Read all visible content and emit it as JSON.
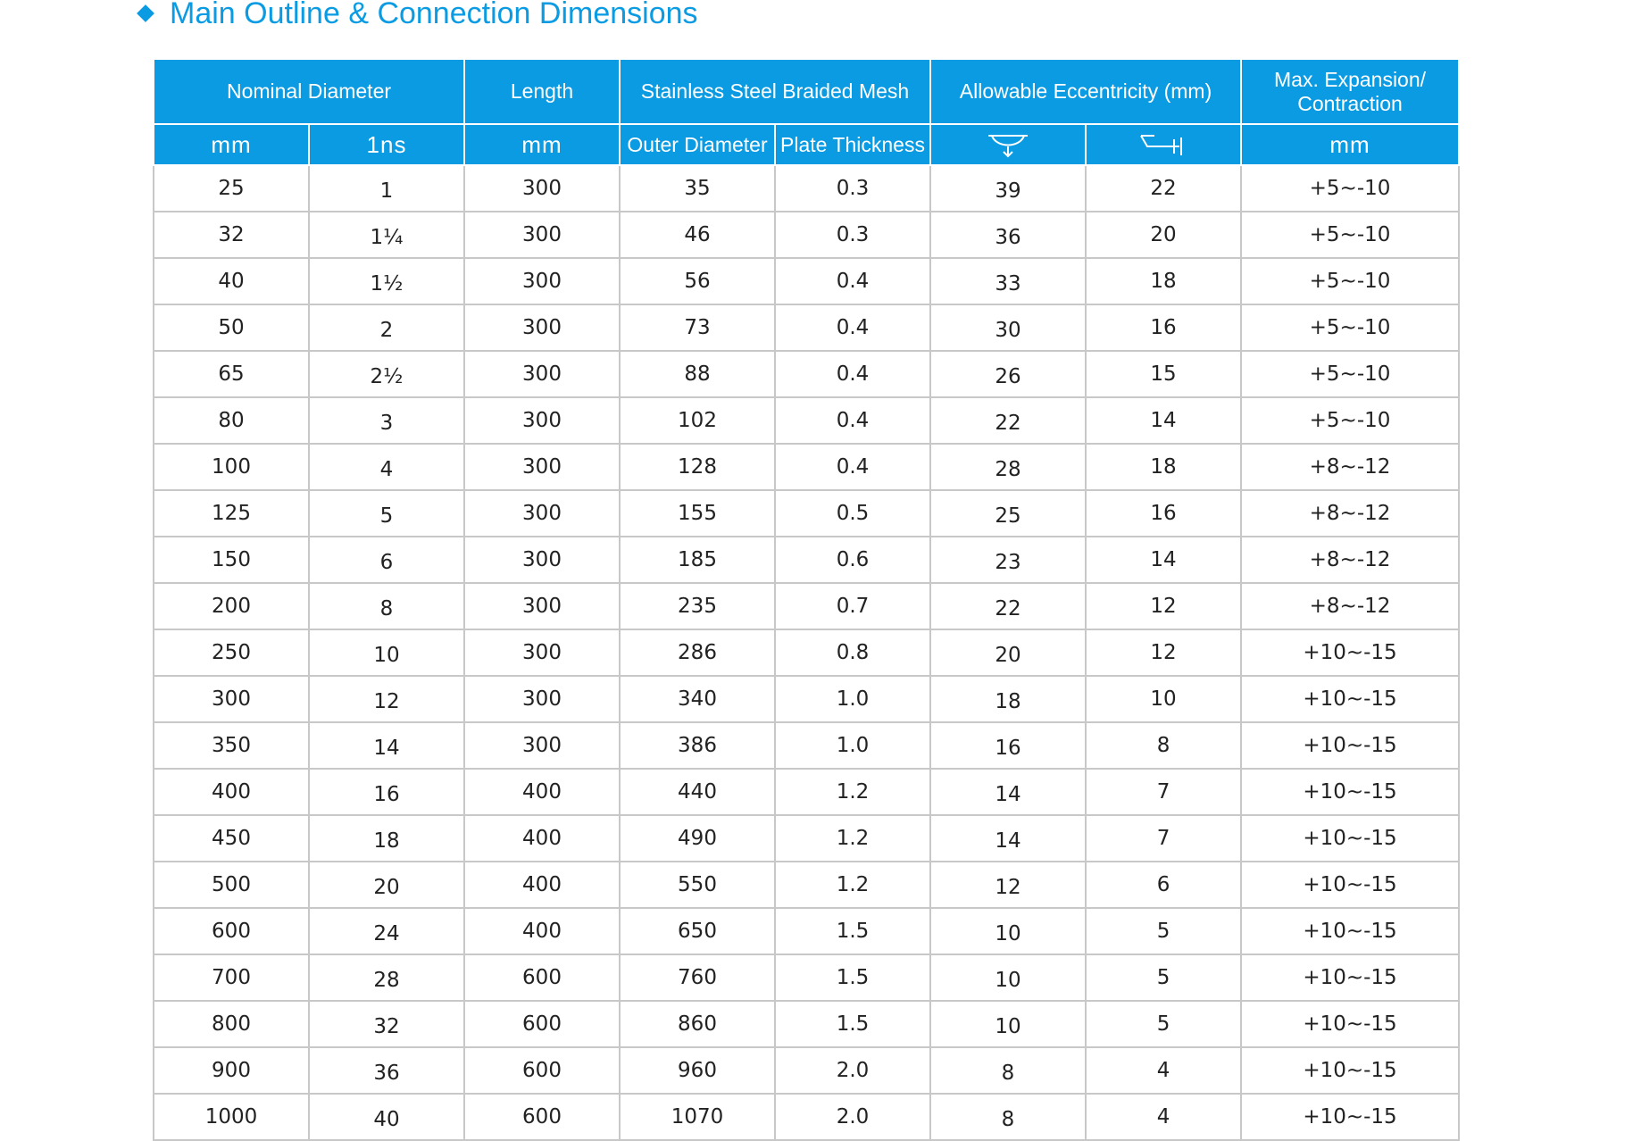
{
  "title": "Main Outline & Connection Dimensions",
  "colors": {
    "accent": "#0a9be3",
    "grid": "#c8c8c8",
    "header_text": "#ffffff"
  },
  "header": {
    "nominal_diameter": "Nominal Diameter",
    "length": "Length",
    "braided_mesh": "Stainless Steel Braided Mesh",
    "eccentricity": "Allowable Eccentricity (mm)",
    "max_expansion": "Max. Expansion/ Contraction",
    "sub": {
      "mm": "mm",
      "ins": "1ns",
      "length_mm": "mm",
      "outer_diameter": "Outer Diameter",
      "plate_thickness": "Plate Thickness",
      "ecc_icon_1": "lateral-offset-icon",
      "ecc_icon_2": "angular-offset-icon",
      "exp_mm": "mm"
    }
  },
  "rows": [
    [
      "25",
      "1",
      "300",
      "35",
      "0.3",
      "39",
      "22",
      "+5~-10"
    ],
    [
      "32",
      "1¼",
      "300",
      "46",
      "0.3",
      "36",
      "20",
      "+5~-10"
    ],
    [
      "40",
      "1½",
      "300",
      "56",
      "0.4",
      "33",
      "18",
      "+5~-10"
    ],
    [
      "50",
      "2",
      "300",
      "73",
      "0.4",
      "30",
      "16",
      "+5~-10"
    ],
    [
      "65",
      "2½",
      "300",
      "88",
      "0.4",
      "26",
      "15",
      "+5~-10"
    ],
    [
      "80",
      "3",
      "300",
      "102",
      "0.4",
      "22",
      "14",
      "+5~-10"
    ],
    [
      "100",
      "4",
      "300",
      "128",
      "0.4",
      "28",
      "18",
      "+8~-12"
    ],
    [
      "125",
      "5",
      "300",
      "155",
      "0.5",
      "25",
      "16",
      "+8~-12"
    ],
    [
      "150",
      "6",
      "300",
      "185",
      "0.6",
      "23",
      "14",
      "+8~-12"
    ],
    [
      "200",
      "8",
      "300",
      "235",
      "0.7",
      "22",
      "12",
      "+8~-12"
    ],
    [
      "250",
      "10",
      "300",
      "286",
      "0.8",
      "20",
      "12",
      "+10~-15"
    ],
    [
      "300",
      "12",
      "300",
      "340",
      "1.0",
      "18",
      "10",
      "+10~-15"
    ],
    [
      "350",
      "14",
      "300",
      "386",
      "1.0",
      "16",
      "8",
      "+10~-15"
    ],
    [
      "400",
      "16",
      "400",
      "440",
      "1.2",
      "14",
      "7",
      "+10~-15"
    ],
    [
      "450",
      "18",
      "400",
      "490",
      "1.2",
      "14",
      "7",
      "+10~-15"
    ],
    [
      "500",
      "20",
      "400",
      "550",
      "1.2",
      "12",
      "6",
      "+10~-15"
    ],
    [
      "600",
      "24",
      "400",
      "650",
      "1.5",
      "10",
      "5",
      "+10~-15"
    ],
    [
      "700",
      "28",
      "600",
      "760",
      "1.5",
      "10",
      "5",
      "+10~-15"
    ],
    [
      "800",
      "32",
      "600",
      "860",
      "1.5",
      "10",
      "5",
      "+10~-15"
    ],
    [
      "900",
      "36",
      "600",
      "960",
      "2.0",
      "8",
      "4",
      "+10~-15"
    ],
    [
      "1000",
      "40",
      "600",
      "1070",
      "2.0",
      "8",
      "4",
      "+10~-15"
    ]
  ]
}
